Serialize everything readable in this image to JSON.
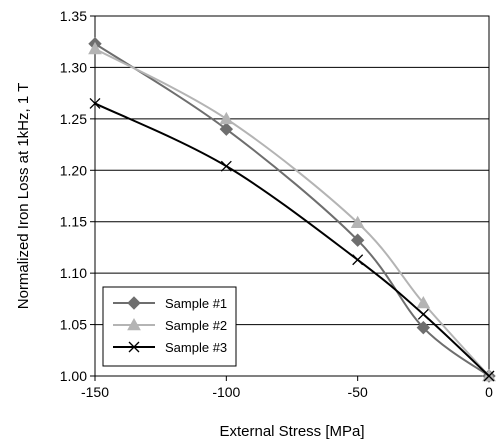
{
  "chart_data": {
    "type": "line",
    "title": "",
    "xlabel": "External Stress [MPa]",
    "ylabel": "Normalized Iron Loss at 1kHz, 1 T",
    "xlim": [
      -150,
      0
    ],
    "ylim": [
      1.0,
      1.35
    ],
    "x_ticks": [
      -150,
      -100,
      -50,
      0
    ],
    "x_tick_labels": [
      "-150",
      "-100",
      "-50",
      "0"
    ],
    "y_ticks": [
      1.0,
      1.05,
      1.1,
      1.15,
      1.2,
      1.25,
      1.3,
      1.35
    ],
    "y_tick_labels": [
      "1.00",
      "1.05",
      "1.10",
      "1.15",
      "1.20",
      "1.25",
      "1.30",
      "1.35"
    ],
    "grid": "horizontal",
    "legend_position": "bottom-left",
    "series": [
      {
        "name": "Sample #1",
        "color": "#6e6e6e",
        "marker": "diamond",
        "x": [
          -150,
          -100,
          -50,
          -25,
          0
        ],
        "y": [
          1.323,
          1.24,
          1.132,
          1.047,
          1.0
        ]
      },
      {
        "name": "Sample #2",
        "color": "#b4b4b4",
        "marker": "triangle",
        "x": [
          -150,
          -100,
          -50,
          -25,
          0
        ],
        "y": [
          1.318,
          1.25,
          1.149,
          1.071,
          1.0
        ]
      },
      {
        "name": "Sample #3",
        "color": "#000000",
        "marker": "x",
        "x": [
          -150,
          -100,
          -50,
          -25,
          0
        ],
        "y": [
          1.265,
          1.204,
          1.113,
          1.06,
          1.0
        ]
      }
    ]
  }
}
